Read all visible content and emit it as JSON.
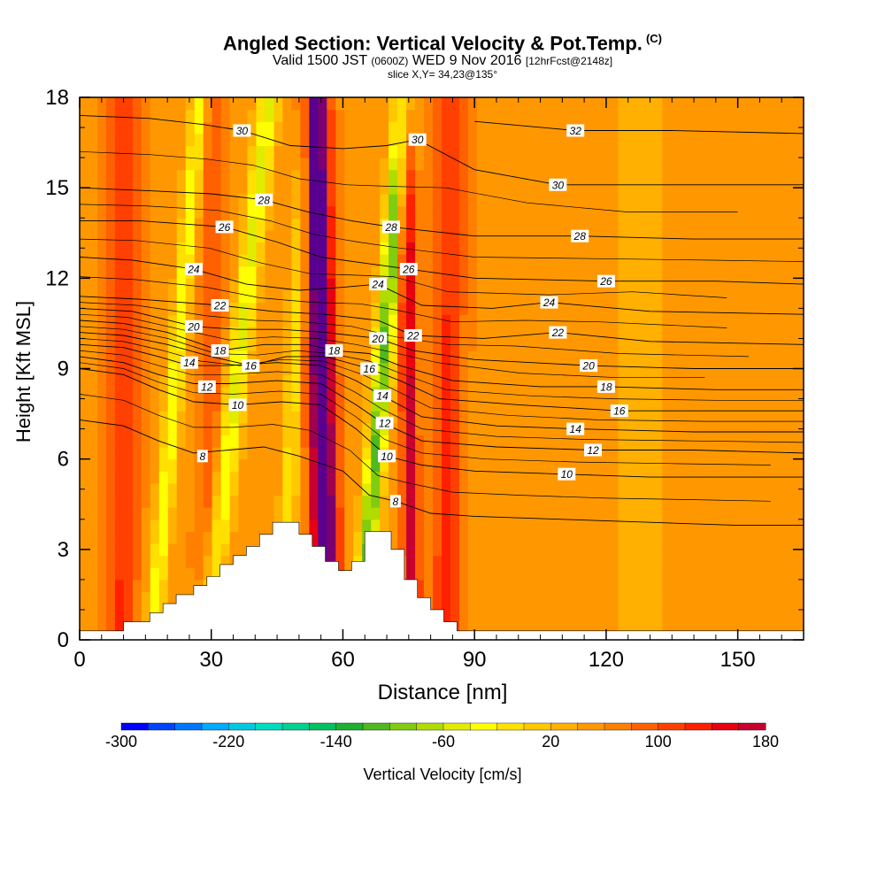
{
  "title": {
    "main": "Angled Section: Vertical Velocity & Pot.Temp.",
    "main_tag": "(C)",
    "valid": "Valid 1500 JST",
    "zulu": "(0600Z)",
    "date": "WED 9 Nov 2016",
    "fcst": "[12hrFcst@2148z]",
    "slice": "slice X,Y= 34,23@135°"
  },
  "chart_data": {
    "type": "heatmap",
    "xlabel": "Distance [nm]",
    "ylabel": "Height [Kft MSL]",
    "xlim": [
      0,
      165
    ],
    "ylim": [
      0,
      18
    ],
    "xticks": [
      0,
      30,
      60,
      90,
      120,
      150
    ],
    "yticks": [
      0,
      3,
      6,
      9,
      12,
      15,
      18
    ],
    "colorbar": {
      "label": "Vertical Velocity [cm/s]",
      "range": [
        -300,
        180
      ],
      "step": 20,
      "tick_labels": [
        -300,
        -220,
        -140,
        -60,
        20,
        100,
        180
      ],
      "colors": [
        "#0000ff",
        "#0044ff",
        "#0077ff",
        "#00aaff",
        "#00c8e0",
        "#00dcc0",
        "#00d090",
        "#00c060",
        "#20b030",
        "#50b820",
        "#80cc10",
        "#b0dc00",
        "#e0ec00",
        "#ffff00",
        "#ffe000",
        "#ffc800",
        "#ffb000",
        "#ff9800",
        "#ff8000",
        "#ff6000",
        "#ff4000",
        "#ff2000",
        "#e80010",
        "#c80030",
        "#a00050",
        "#7a0070",
        "#5a0090"
      ]
    },
    "terrain": [
      [
        0,
        0.3
      ],
      [
        10,
        0.3
      ],
      [
        10,
        0.6
      ],
      [
        16,
        0.6
      ],
      [
        16,
        0.9
      ],
      [
        19,
        0.9
      ],
      [
        19,
        1.2
      ],
      [
        22,
        1.2
      ],
      [
        22,
        1.5
      ],
      [
        26,
        1.5
      ],
      [
        26,
        1.8
      ],
      [
        29,
        1.8
      ],
      [
        29,
        2.1
      ],
      [
        32,
        2.1
      ],
      [
        32,
        2.5
      ],
      [
        35,
        2.5
      ],
      [
        35,
        2.8
      ],
      [
        38,
        2.8
      ],
      [
        38,
        3.1
      ],
      [
        41,
        3.1
      ],
      [
        41,
        3.5
      ],
      [
        44,
        3.5
      ],
      [
        44,
        3.9
      ],
      [
        50,
        3.9
      ],
      [
        50,
        3.5
      ],
      [
        53,
        3.5
      ],
      [
        53,
        3.1
      ],
      [
        56,
        3.1
      ],
      [
        56,
        2.6
      ],
      [
        59,
        2.6
      ],
      [
        59,
        2.3
      ],
      [
        62,
        2.3
      ],
      [
        62,
        2.6
      ],
      [
        65,
        2.6
      ],
      [
        65,
        3.6
      ],
      [
        71,
        3.6
      ],
      [
        71,
        3.0
      ],
      [
        74,
        3.0
      ],
      [
        74,
        2.0
      ],
      [
        77,
        2.0
      ],
      [
        77,
        1.4
      ],
      [
        80,
        1.4
      ],
      [
        80,
        1.0
      ],
      [
        83,
        1.0
      ],
      [
        83,
        0.6
      ],
      [
        86,
        0.6
      ],
      [
        86,
        0.3
      ],
      [
        165,
        0.3
      ]
    ],
    "velocity_features": [
      {
        "x": 55,
        "w": 3.0,
        "v": 180,
        "lean": -0.15
      },
      {
        "x": 75,
        "w": 1.8,
        "v": 100,
        "lean": -0.1
      },
      {
        "x": 69,
        "w": 2.2,
        "v": -140,
        "lean": 0.55
      },
      {
        "x": 36,
        "w": 2.5,
        "v": -90,
        "lean": 0.8
      },
      {
        "x": 22,
        "w": 2.0,
        "v": -80,
        "lean": 0.6
      },
      {
        "x": 49,
        "w": 2.0,
        "v": -60,
        "lean": 0.3
      },
      {
        "x": 10,
        "w": 3.5,
        "v": 60,
        "lean": 0.05
      },
      {
        "x": 30,
        "w": 3.0,
        "v": 40,
        "lean": 0.1
      },
      {
        "x": 84,
        "w": 3.5,
        "v": 60,
        "lean": 0.05
      },
      {
        "x": 128,
        "w": 8.0,
        "v": -20,
        "lean": 0.0
      }
    ],
    "contour_labels": [
      {
        "text": "30",
        "x": 37,
        "y": 16.9
      },
      {
        "text": "28",
        "x": 42,
        "y": 14.6
      },
      {
        "text": "26",
        "x": 33,
        "y": 13.7
      },
      {
        "text": "24",
        "x": 26,
        "y": 12.3
      },
      {
        "text": "22",
        "x": 32,
        "y": 11.1
      },
      {
        "text": "20",
        "x": 26,
        "y": 10.4
      },
      {
        "text": "18",
        "x": 32,
        "y": 9.6
      },
      {
        "text": "16",
        "x": 39,
        "y": 9.1
      },
      {
        "text": "14",
        "x": 25,
        "y": 9.2
      },
      {
        "text": "12",
        "x": 29,
        "y": 8.4
      },
      {
        "text": "10",
        "x": 36,
        "y": 7.8
      },
      {
        "text": "8",
        "x": 28,
        "y": 6.1
      },
      {
        "text": "30",
        "x": 77,
        "y": 16.6
      },
      {
        "text": "28",
        "x": 71,
        "y": 13.7
      },
      {
        "text": "26",
        "x": 75,
        "y": 12.3
      },
      {
        "text": "24",
        "x": 68,
        "y": 11.8
      },
      {
        "text": "22",
        "x": 76,
        "y": 10.1
      },
      {
        "text": "20",
        "x": 68,
        "y": 10.0
      },
      {
        "text": "18",
        "x": 58,
        "y": 9.6
      },
      {
        "text": "16",
        "x": 66,
        "y": 9.0
      },
      {
        "text": "14",
        "x": 69,
        "y": 8.1
      },
      {
        "text": "12",
        "x": 69.5,
        "y": 7.2
      },
      {
        "text": "10",
        "x": 70,
        "y": 6.1
      },
      {
        "text": "8",
        "x": 72,
        "y": 4.6
      },
      {
        "text": "32",
        "x": 113,
        "y": 16.9
      },
      {
        "text": "30",
        "x": 109,
        "y": 15.1
      },
      {
        "text": "28",
        "x": 114,
        "y": 13.4
      },
      {
        "text": "26",
        "x": 120,
        "y": 11.9
      },
      {
        "text": "24",
        "x": 107,
        "y": 11.2
      },
      {
        "text": "22",
        "x": 109,
        "y": 10.2
      },
      {
        "text": "20",
        "x": 116,
        "y": 9.1
      },
      {
        "text": "18",
        "x": 120,
        "y": 8.4
      },
      {
        "text": "16",
        "x": 123,
        "y": 7.6
      },
      {
        "text": "14",
        "x": 113,
        "y": 7.0
      },
      {
        "text": "12",
        "x": 117,
        "y": 6.3
      },
      {
        "text": "10",
        "x": 111,
        "y": 5.5
      }
    ],
    "contours": [
      {
        "level": 8,
        "pts": [
          [
            0,
            7.3
          ],
          [
            10,
            7.1
          ],
          [
            18,
            6.6
          ],
          [
            26,
            6.2
          ],
          [
            34,
            6.3
          ],
          [
            42,
            6.4
          ],
          [
            50,
            6.1
          ],
          [
            60,
            5.6
          ],
          [
            66,
            4.8
          ],
          [
            72,
            4.6
          ],
          [
            80,
            4.2
          ],
          [
            90,
            4.1
          ],
          [
            110,
            4.0
          ],
          [
            130,
            3.9
          ],
          [
            150,
            3.8
          ],
          [
            165,
            3.8
          ]
        ]
      },
      {
        "level": 10,
        "pts": [
          [
            0,
            9.0
          ],
          [
            10,
            8.8
          ],
          [
            18,
            8.3
          ],
          [
            26,
            7.9
          ],
          [
            36,
            7.8
          ],
          [
            46,
            7.9
          ],
          [
            55,
            7.8
          ],
          [
            63,
            7.0
          ],
          [
            70,
            6.1
          ],
          [
            78,
            5.8
          ],
          [
            90,
            5.6
          ],
          [
            110,
            5.5
          ],
          [
            130,
            5.4
          ],
          [
            150,
            5.4
          ],
          [
            165,
            5.4
          ]
        ]
      },
      {
        "level": 12,
        "pts": [
          [
            0,
            9.4
          ],
          [
            10,
            9.2
          ],
          [
            18,
            8.8
          ],
          [
            26,
            8.5
          ],
          [
            34,
            8.5
          ],
          [
            45,
            8.6
          ],
          [
            55,
            8.5
          ],
          [
            63,
            7.8
          ],
          [
            69,
            7.2
          ],
          [
            78,
            6.6
          ],
          [
            95,
            6.4
          ],
          [
            117,
            6.3
          ],
          [
            140,
            6.3
          ],
          [
            165,
            6.2
          ]
        ]
      },
      {
        "level": 14,
        "pts": [
          [
            0,
            9.8
          ],
          [
            10,
            9.7
          ],
          [
            18,
            9.4
          ],
          [
            25,
            9.1
          ],
          [
            34,
            9.1
          ],
          [
            45,
            9.2
          ],
          [
            55,
            9.1
          ],
          [
            63,
            8.6
          ],
          [
            69,
            8.1
          ],
          [
            78,
            7.4
          ],
          [
            95,
            7.1
          ],
          [
            113,
            7.0
          ],
          [
            140,
            6.9
          ],
          [
            165,
            6.9
          ]
        ]
      },
      {
        "level": 16,
        "pts": [
          [
            0,
            10.2
          ],
          [
            10,
            10.1
          ],
          [
            20,
            9.8
          ],
          [
            30,
            9.4
          ],
          [
            39,
            9.1
          ],
          [
            47,
            9.4
          ],
          [
            56,
            9.4
          ],
          [
            66,
            9.0
          ],
          [
            73,
            8.6
          ],
          [
            82,
            8.0
          ],
          [
            100,
            7.8
          ],
          [
            123,
            7.6
          ],
          [
            145,
            7.6
          ],
          [
            165,
            7.6
          ]
        ]
      },
      {
        "level": 18,
        "pts": [
          [
            0,
            10.6
          ],
          [
            10,
            10.5
          ],
          [
            20,
            10.2
          ],
          [
            32,
            9.6
          ],
          [
            42,
            9.8
          ],
          [
            52,
            9.8
          ],
          [
            58,
            9.6
          ],
          [
            66,
            9.5
          ],
          [
            73,
            9.1
          ],
          [
            85,
            8.6
          ],
          [
            105,
            8.4
          ],
          [
            120,
            8.4
          ],
          [
            145,
            8.3
          ],
          [
            165,
            8.3
          ]
        ]
      },
      {
        "level": 20,
        "pts": [
          [
            0,
            11.0
          ],
          [
            12,
            10.9
          ],
          [
            26,
            10.4
          ],
          [
            36,
            10.3
          ],
          [
            46,
            10.3
          ],
          [
            56,
            10.2
          ],
          [
            68,
            10.0
          ],
          [
            76,
            9.6
          ],
          [
            90,
            9.3
          ],
          [
            116,
            9.1
          ],
          [
            140,
            9.0
          ],
          [
            165,
            9.0
          ]
        ]
      },
      {
        "level": 22,
        "pts": [
          [
            0,
            11.4
          ],
          [
            14,
            11.3
          ],
          [
            32,
            11.1
          ],
          [
            44,
            10.9
          ],
          [
            56,
            10.8
          ],
          [
            68,
            10.6
          ],
          [
            76,
            10.1
          ],
          [
            92,
            10.0
          ],
          [
            109,
            10.2
          ],
          [
            130,
            9.9
          ],
          [
            165,
            9.8
          ]
        ]
      },
      {
        "level": 24,
        "pts": [
          [
            0,
            12.7
          ],
          [
            12,
            12.6
          ],
          [
            26,
            12.3
          ],
          [
            38,
            11.8
          ],
          [
            50,
            11.6
          ],
          [
            60,
            11.7
          ],
          [
            68,
            11.8
          ],
          [
            78,
            11.1
          ],
          [
            94,
            11.0
          ],
          [
            107,
            11.2
          ],
          [
            130,
            10.9
          ],
          [
            165,
            10.8
          ]
        ]
      },
      {
        "level": 26,
        "pts": [
          [
            0,
            13.9
          ],
          [
            14,
            13.9
          ],
          [
            33,
            13.7
          ],
          [
            45,
            13.2
          ],
          [
            55,
            12.7
          ],
          [
            65,
            12.5
          ],
          [
            75,
            12.3
          ],
          [
            90,
            12.0
          ],
          [
            120,
            11.9
          ],
          [
            145,
            11.9
          ],
          [
            165,
            11.8
          ]
        ]
      },
      {
        "level": 28,
        "pts": [
          [
            0,
            15.0
          ],
          [
            16,
            14.9
          ],
          [
            30,
            14.8
          ],
          [
            42,
            14.6
          ],
          [
            52,
            14.2
          ],
          [
            62,
            13.9
          ],
          [
            71,
            13.7
          ],
          [
            90,
            13.4
          ],
          [
            114,
            13.4
          ],
          [
            140,
            13.3
          ],
          [
            165,
            13.3
          ]
        ]
      },
      {
        "level": 30,
        "pts": [
          [
            0,
            17.4
          ],
          [
            16,
            17.3
          ],
          [
            28,
            17.1
          ],
          [
            37,
            16.9
          ],
          [
            48,
            16.4
          ],
          [
            60,
            16.3
          ],
          [
            70,
            16.4
          ],
          [
            77,
            16.6
          ],
          [
            90,
            15.6
          ],
          [
            109,
            15.1
          ],
          [
            135,
            15.1
          ],
          [
            165,
            15.1
          ]
        ]
      },
      {
        "level": 32,
        "pts": [
          [
            90,
            17.2
          ],
          [
            113,
            16.9
          ],
          [
            135,
            16.9
          ],
          [
            165,
            16.8
          ]
        ]
      }
    ]
  }
}
